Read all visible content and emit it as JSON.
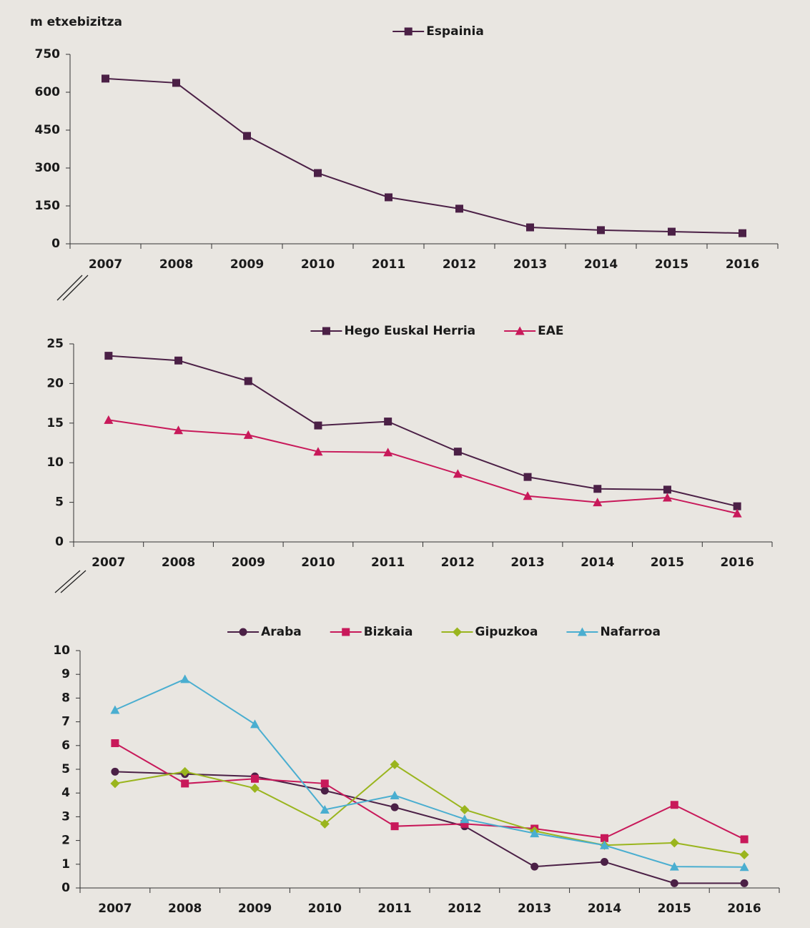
{
  "chart_data": [
    {
      "type": "line",
      "y_label": "m etxebizitza",
      "categories": [
        "2007",
        "2008",
        "2009",
        "2010",
        "2011",
        "2012",
        "2013",
        "2014",
        "2015",
        "2016"
      ],
      "series": [
        {
          "name": "Espainia",
          "color": "#4b2046",
          "marker": "square",
          "values": [
            654,
            637,
            427,
            280,
            184,
            139,
            65,
            54,
            48,
            42
          ]
        }
      ],
      "ylim": [
        0,
        750
      ],
      "yticks": [
        0,
        150,
        300,
        450,
        600,
        750
      ],
      "legend": "top"
    },
    {
      "type": "line",
      "categories": [
        "2007",
        "2008",
        "2009",
        "2010",
        "2011",
        "2012",
        "2013",
        "2014",
        "2015",
        "2016"
      ],
      "series": [
        {
          "name": "Hego Euskal Herria",
          "color": "#4b2046",
          "marker": "square",
          "values": [
            23.5,
            22.9,
            20.3,
            14.7,
            15.2,
            11.4,
            8.2,
            6.7,
            6.6,
            4.5
          ]
        },
        {
          "name": "EAE",
          "color": "#c8195a",
          "marker": "triangle",
          "values": [
            15.4,
            14.1,
            13.5,
            11.4,
            11.3,
            8.6,
            5.8,
            5.0,
            5.6,
            3.6
          ]
        }
      ],
      "ylim": [
        0,
        25
      ],
      "yticks": [
        0,
        5,
        10,
        15,
        20,
        25
      ],
      "legend": "top"
    },
    {
      "type": "line",
      "categories": [
        "2007",
        "2008",
        "2009",
        "2010",
        "2011",
        "2012",
        "2013",
        "2014",
        "2015",
        "2016"
      ],
      "series": [
        {
          "name": "Araba",
          "color": "#4b2046",
          "marker": "circle",
          "values": [
            4.9,
            4.8,
            4.7,
            4.1,
            3.4,
            2.6,
            0.9,
            1.1,
            0.2,
            0.2
          ]
        },
        {
          "name": "Bizkaia",
          "color": "#c8195a",
          "marker": "square",
          "values": [
            6.1,
            4.4,
            4.6,
            4.4,
            2.6,
            2.7,
            2.5,
            2.1,
            3.5,
            2.05
          ]
        },
        {
          "name": "Gipuzkoa",
          "color": "#9ab51e",
          "marker": "diamond",
          "values": [
            4.4,
            4.9,
            4.2,
            2.7,
            5.2,
            3.3,
            2.4,
            1.8,
            1.9,
            1.4
          ]
        },
        {
          "name": "Nafarroa",
          "color": "#4aaed0",
          "marker": "triangle",
          "values": [
            7.5,
            8.8,
            6.9,
            3.3,
            3.9,
            2.9,
            2.3,
            1.8,
            0.9,
            0.88
          ]
        }
      ],
      "ylim": [
        0,
        10
      ],
      "yticks": [
        0,
        1,
        2,
        3,
        4,
        5,
        6,
        7,
        8,
        9,
        10
      ],
      "legend": "top"
    }
  ]
}
